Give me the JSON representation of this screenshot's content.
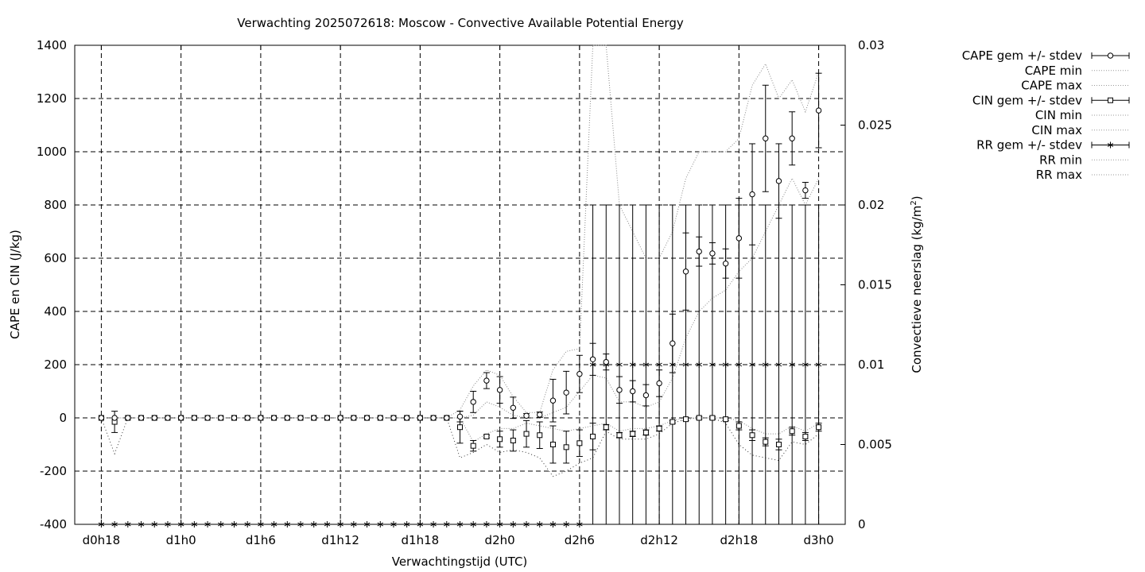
{
  "chart_data": {
    "type": "line",
    "title": "Verwachting 2025072618: Moscow - Convective Available Potential Energy",
    "xlabel": "Verwachtingstijd (UTC)",
    "ylabel": "CAPE en CIN (J/kg)",
    "y2label_main": "Convectieve neerslag (kg/m",
    "y2label_sup": "2",
    "y2label_end": ")",
    "x_tick_labels": [
      "d0h18",
      "d1h0",
      "d1h6",
      "d1h12",
      "d1h18",
      "d2h0",
      "d2h6",
      "d2h12",
      "d2h18",
      "d3h0"
    ],
    "x_tick_hours": [
      18,
      24,
      30,
      36,
      42,
      48,
      54,
      60,
      66,
      72
    ],
    "xlim": [
      16,
      74
    ],
    "ylim": [
      -400,
      1400
    ],
    "y_ticks": [
      -400,
      -200,
      0,
      200,
      400,
      600,
      800,
      1000,
      1200,
      1400
    ],
    "y_tick_labels": [
      "-400",
      "-200",
      "0",
      "200",
      "400",
      "600",
      "800",
      "1000",
      "1200",
      "1400"
    ],
    "y2lim": [
      0,
      0.03
    ],
    "y2_ticks": [
      0,
      0.005,
      0.01,
      0.015,
      0.02,
      0.025,
      0.03
    ],
    "y2_tick_labels": [
      "0",
      "0.005",
      "0.01",
      "0.015",
      "0.02",
      "0.025",
      "0.03"
    ],
    "grid": true,
    "legend_position": "outside-right",
    "legend": [
      {
        "label": "CAPE gem +/- stdev",
        "kind": "errorbar",
        "marker": "circle"
      },
      {
        "label": "CAPE min",
        "kind": "line"
      },
      {
        "label": "CAPE max",
        "kind": "line"
      },
      {
        "label": "CIN gem +/- stdev",
        "kind": "errorbar",
        "marker": "square"
      },
      {
        "label": "CIN min",
        "kind": "line"
      },
      {
        "label": "CIN max",
        "kind": "line"
      },
      {
        "label": "RR gem +/- stdev",
        "kind": "errorbar",
        "marker": "star"
      },
      {
        "label": "RR min",
        "kind": "line"
      },
      {
        "label": "RR max",
        "kind": "line"
      }
    ],
    "x": [
      18,
      19,
      20,
      21,
      22,
      23,
      24,
      25,
      26,
      27,
      28,
      29,
      30,
      31,
      32,
      33,
      34,
      35,
      36,
      37,
      38,
      39,
      40,
      41,
      42,
      43,
      44,
      45,
      46,
      47,
      48,
      49,
      50,
      51,
      52,
      53,
      54,
      55,
      56,
      57,
      58,
      59,
      60,
      61,
      62,
      63,
      64,
      65,
      66,
      67,
      68,
      69,
      70,
      71,
      72
    ],
    "series": [
      {
        "key": "cape",
        "axis": "y",
        "mean": [
          0,
          0,
          0,
          0,
          0,
          0,
          0,
          0,
          0,
          0,
          0,
          0,
          0,
          0,
          0,
          0,
          0,
          0,
          0,
          0,
          0,
          0,
          0,
          0,
          0,
          0,
          0,
          5,
          60,
          140,
          105,
          38,
          8,
          12,
          65,
          95,
          165,
          220,
          210,
          105,
          100,
          85,
          130,
          280,
          550,
          625,
          618,
          580,
          675,
          840,
          1050,
          890,
          1050,
          855,
          1155
        ],
        "stdev": [
          0,
          0,
          0,
          0,
          0,
          0,
          0,
          0,
          0,
          0,
          0,
          0,
          0,
          0,
          0,
          0,
          0,
          0,
          0,
          0,
          0,
          0,
          0,
          0,
          0,
          0,
          0,
          20,
          40,
          30,
          50,
          40,
          8,
          10,
          80,
          80,
          70,
          60,
          30,
          50,
          40,
          40,
          50,
          110,
          145,
          55,
          40,
          55,
          150,
          190,
          200,
          140,
          100,
          30,
          140
        ],
        "min": [
          0,
          0,
          0,
          0,
          0,
          0,
          0,
          0,
          0,
          0,
          0,
          0,
          0,
          0,
          0,
          0,
          0,
          0,
          0,
          0,
          0,
          0,
          0,
          0,
          0,
          0,
          0,
          0,
          10,
          60,
          40,
          10,
          0,
          0,
          20,
          40,
          100,
          160,
          150,
          60,
          60,
          40,
          60,
          150,
          300,
          400,
          450,
          480,
          550,
          600,
          700,
          800,
          900,
          800,
          900
        ],
        "max": [
          0,
          0,
          0,
          0,
          0,
          0,
          0,
          0,
          0,
          0,
          0,
          0,
          0,
          0,
          0,
          0,
          0,
          0,
          0,
          0,
          0,
          0,
          0,
          0,
          0,
          0,
          0,
          30,
          120,
          180,
          160,
          80,
          20,
          20,
          180,
          250,
          260,
          1450,
          1400,
          800,
          700,
          600,
          600,
          700,
          900,
          1000,
          1000,
          1000,
          1050,
          1250,
          1330,
          1200,
          1270,
          1150,
          1300
        ]
      },
      {
        "key": "cin",
        "axis": "y",
        "mean": [
          0,
          -15,
          0,
          0,
          0,
          0,
          0,
          0,
          0,
          0,
          0,
          0,
          0,
          0,
          0,
          0,
          0,
          0,
          0,
          0,
          0,
          0,
          0,
          0,
          0,
          0,
          0,
          -35,
          -105,
          -70,
          -80,
          -85,
          -60,
          -65,
          -100,
          -110,
          -95,
          -70,
          -35,
          -65,
          -60,
          -55,
          -40,
          -15,
          -5,
          0,
          0,
          -5,
          -30,
          -65,
          -90,
          -100,
          -50,
          -70,
          -35
        ],
        "stdev": [
          0,
          40,
          0,
          0,
          0,
          0,
          0,
          0,
          0,
          0,
          0,
          0,
          0,
          0,
          0,
          0,
          0,
          0,
          0,
          0,
          0,
          0,
          0,
          0,
          0,
          0,
          0,
          60,
          20,
          5,
          30,
          40,
          50,
          50,
          70,
          60,
          50,
          50,
          10,
          10,
          10,
          10,
          10,
          5,
          5,
          5,
          5,
          5,
          15,
          20,
          15,
          20,
          15,
          15,
          15
        ],
        "min": [
          0,
          -135,
          0,
          0,
          0,
          0,
          0,
          0,
          0,
          0,
          0,
          0,
          0,
          0,
          0,
          0,
          0,
          0,
          0,
          0,
          0,
          0,
          0,
          0,
          0,
          0,
          0,
          -150,
          -130,
          -100,
          -130,
          -120,
          -130,
          -150,
          -220,
          -200,
          -170,
          -150,
          -50,
          -80,
          -80,
          -80,
          -60,
          -20,
          -5,
          0,
          0,
          -20,
          -100,
          -140,
          -150,
          -160,
          -90,
          -100,
          -60
        ],
        "max": [
          0,
          0,
          0,
          0,
          0,
          0,
          0,
          0,
          0,
          0,
          0,
          0,
          0,
          0,
          0,
          0,
          0,
          0,
          0,
          0,
          0,
          0,
          0,
          0,
          0,
          0,
          0,
          0,
          -90,
          -60,
          -40,
          -40,
          -20,
          -30,
          -40,
          -50,
          -40,
          -30,
          -20,
          -50,
          -40,
          -40,
          -30,
          -10,
          0,
          0,
          0,
          0,
          -10,
          -40,
          -60,
          -60,
          -30,
          -50,
          -20
        ]
      },
      {
        "key": "rr",
        "axis": "y2",
        "mean": [
          0,
          0,
          0,
          0,
          0,
          0,
          0,
          0,
          0,
          0,
          0,
          0,
          0,
          0,
          0,
          0,
          0,
          0,
          0,
          0,
          0,
          0,
          0,
          0,
          0,
          0,
          0,
          0,
          0,
          0,
          0,
          0,
          0,
          0,
          0,
          0,
          0,
          0.01,
          0.01,
          0.01,
          0.01,
          0.01,
          0.01,
          0.01,
          0.01,
          0.01,
          0.01,
          0.01,
          0.01,
          0.01,
          0.01,
          0.01,
          0.01,
          0.01,
          0.01
        ],
        "stdev": [
          0,
          0,
          0,
          0,
          0,
          0,
          0,
          0,
          0,
          0,
          0,
          0,
          0,
          0,
          0,
          0,
          0,
          0,
          0,
          0,
          0,
          0,
          0,
          0,
          0,
          0,
          0,
          0,
          0,
          0,
          0,
          0,
          0,
          0,
          0,
          0,
          0,
          0.01,
          0.01,
          0.01,
          0.01,
          0.01,
          0.01,
          0.01,
          0.01,
          0.01,
          0.01,
          0.01,
          0.01,
          0.01,
          0.01,
          0.01,
          0.01,
          0.01,
          0.01
        ]
      }
    ]
  }
}
